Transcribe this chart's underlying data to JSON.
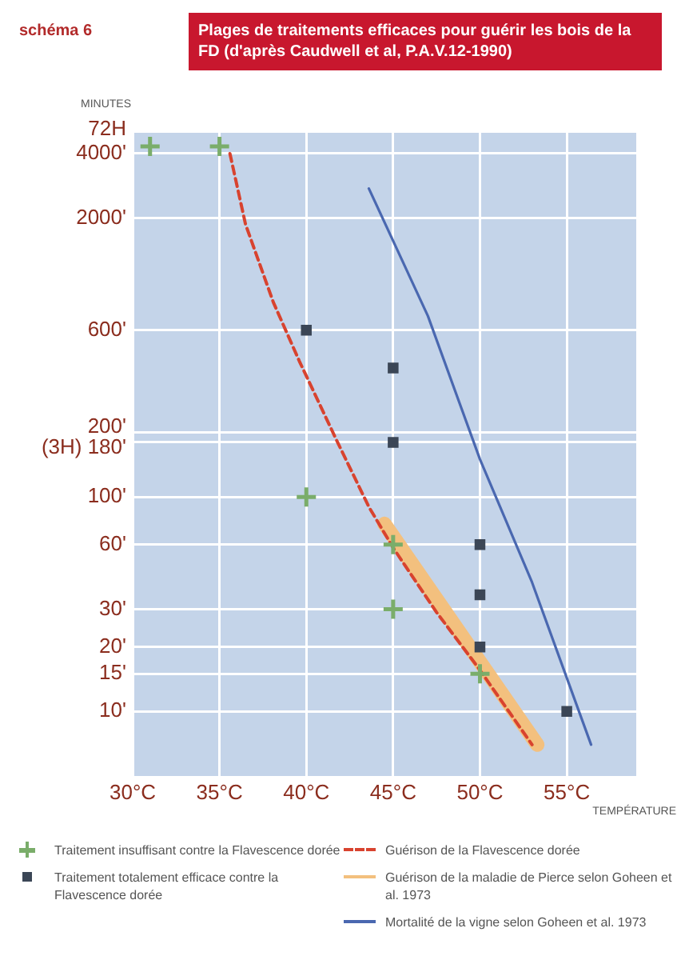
{
  "chart_data": {
    "type": "scatter",
    "title": "Plages de traitements efficaces pour guérir les bois de la FD (d'après Caudwell et al, P.A.V.12-1990)",
    "annotations": [
      "schéma 6"
    ],
    "xlabel": "TEMPÉRATURE",
    "ylabel": "MINUTES",
    "xlim": [
      30,
      59
    ],
    "xticks": [
      {
        "value": 30,
        "label": "30°C"
      },
      {
        "value": 35,
        "label": "35°C"
      },
      {
        "value": 40,
        "label": "40°C"
      },
      {
        "value": 45,
        "label": "45°C"
      },
      {
        "value": 50,
        "label": "50°C"
      },
      {
        "value": 55,
        "label": "55°C"
      }
    ],
    "ylim": [
      5,
      5000
    ],
    "yticks": [
      {
        "value": 4000,
        "label": "72H\n4000'"
      },
      {
        "value": 2000,
        "label": "2000'"
      },
      {
        "value": 600,
        "label": "600'"
      },
      {
        "value": 200,
        "label": "200'"
      },
      {
        "value": 180,
        "label": "(3H) 180'"
      },
      {
        "value": 100,
        "label": "100'"
      },
      {
        "value": 60,
        "label": "60'"
      },
      {
        "value": 30,
        "label": "30'"
      },
      {
        "value": 20,
        "label": "20'"
      },
      {
        "value": 15,
        "label": "15'"
      },
      {
        "value": 10,
        "label": "10'"
      }
    ],
    "log": "y",
    "grid": true,
    "legend": "bottom",
    "series": [
      {
        "name": "Traitement insuffisant contre la Flavescence dorée",
        "marker": "cross",
        "color": "#7aad6a",
        "x": [
          31,
          35,
          40,
          45,
          45,
          50
        ],
        "values": [
          4320,
          4320,
          100,
          60,
          30,
          15
        ]
      },
      {
        "name": "Traitement totalement efficace contre la Flavescence dorée",
        "marker": "square",
        "color": "#3b4656",
        "x": [
          40,
          45,
          45,
          50,
          50,
          50,
          55
        ],
        "values": [
          600,
          400,
          180,
          60,
          35,
          20,
          10
        ]
      },
      {
        "name": "Guérison de la Flavescence dorée",
        "type": "line",
        "line_style": "dashed",
        "marker": "none",
        "color": "#d8432f",
        "x": [
          35.6,
          36.5,
          38.1,
          39.6,
          41.8,
          43.6,
          45,
          47.5,
          49.9,
          53
        ],
        "values": [
          4000,
          1870,
          810,
          430,
          180,
          90,
          58,
          29,
          16,
          7
        ]
      },
      {
        "name": "Guérison de la maladie de Pierce selon Goheen et al. 1973",
        "type": "line",
        "line_style": "solid",
        "marker": "none",
        "color": "#f3c07e",
        "x": [
          44.5,
          53.3
        ],
        "values": [
          75,
          7
        ]
      },
      {
        "name": "Mortalité de la vigne selon Goheen et al. 1973",
        "type": "line",
        "line_style": "solid",
        "marker": "none",
        "color": "#4a68b0",
        "x": [
          43.6,
          47,
          50,
          53,
          56.4
        ],
        "values": [
          2750,
          700,
          150,
          40,
          7
        ]
      }
    ]
  }
}
